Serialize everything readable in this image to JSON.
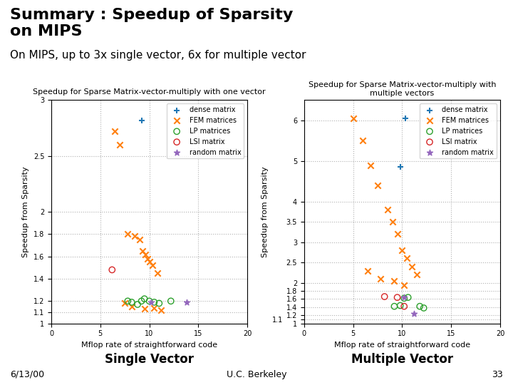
{
  "title": "Summary : Speedup of Sparsity\non MIPS",
  "subtitle": "On MIPS, up to 3x single vector, 6x for multiple vector",
  "annotations": [
    "6/13/00",
    "U.C. Berkeley",
    "33"
  ],
  "chart_data": [
    {
      "type": "scatter",
      "title": "Speedup for Sparse Matrix-vector-multiply with one vector",
      "x_label": "Mflop rate of straightforward code",
      "y_label": "Speedup from Sparsity",
      "xlim": [
        0,
        20
      ],
      "ylim": [
        1,
        3
      ],
      "xticks": [
        0,
        5,
        10,
        15,
        20
      ],
      "yticks": [
        1,
        1.1,
        1.2,
        1.4,
        1.6,
        1.8,
        2,
        2.5,
        3
      ],
      "grid": true,
      "legend": "upper right",
      "annotations": [
        "Single Vector"
      ],
      "series": [
        {
          "name": "dense matrix",
          "marker": "plus",
          "x": [
            9.2
          ],
          "values": [
            2.82
          ]
        },
        {
          "name": "FEM matrices",
          "marker": "x",
          "x": [
            6.5,
            7.0,
            7.8,
            8.5,
            9.0,
            9.3,
            9.6,
            9.8,
            10.0,
            10.3,
            10.8,
            7.5,
            8.2,
            9.5,
            10.5,
            11.2
          ],
          "values": [
            2.72,
            2.6,
            1.8,
            1.78,
            1.75,
            1.65,
            1.62,
            1.58,
            1.55,
            1.52,
            1.45,
            1.18,
            1.15,
            1.13,
            1.14,
            1.12
          ]
        },
        {
          "name": "LP matrices",
          "marker": "circle",
          "x": [
            7.8,
            8.2,
            8.8,
            9.2,
            9.5,
            10.0,
            10.5,
            11.0,
            12.2
          ],
          "values": [
            1.2,
            1.19,
            1.17,
            1.2,
            1.22,
            1.2,
            1.19,
            1.18,
            1.2
          ]
        },
        {
          "name": "LSI matrix",
          "marker": "circle",
          "x": [
            6.2
          ],
          "values": [
            1.48
          ]
        },
        {
          "name": "random matrix",
          "marker": "star",
          "x": [
            10.2,
            13.8
          ],
          "values": [
            1.19,
            1.19
          ]
        }
      ]
    },
    {
      "type": "scatter",
      "title": "Speedup for Sparse Matrix-vector-multiply with multiple vectors",
      "x_label": "Mflop rate of straightforward code",
      "y_label": "Speedup from Sparsity",
      "xlim": [
        0,
        20
      ],
      "ylim": [
        1,
        6.5
      ],
      "xticks": [
        0,
        5,
        10,
        15,
        20
      ],
      "yticks": [
        1,
        1.1,
        1.2,
        1.4,
        1.6,
        1.8,
        2,
        2.5,
        3,
        3.5,
        4,
        5,
        6
      ],
      "grid": true,
      "legend": "upper right",
      "annotations": [
        "Multiple Vector"
      ],
      "series": [
        {
          "name": "dense matrix",
          "marker": "plus",
          "x": [
            9.8,
            10.3
          ],
          "values": [
            4.85,
            6.05
          ]
        },
        {
          "name": "FEM matrices",
          "marker": "x",
          "x": [
            5.0,
            6.0,
            6.8,
            7.5,
            8.5,
            9.0,
            9.5,
            10.0,
            10.5,
            11.0,
            11.5,
            6.5,
            7.8,
            9.2,
            10.2
          ],
          "values": [
            6.05,
            5.5,
            4.9,
            4.4,
            3.8,
            3.5,
            3.2,
            2.8,
            2.6,
            2.4,
            2.2,
            2.3,
            2.1,
            2.05,
            1.95
          ]
        },
        {
          "name": "LP matrices",
          "marker": "circle",
          "x": [
            9.2,
            9.8,
            10.2,
            10.6,
            11.8,
            12.2
          ],
          "values": [
            1.42,
            1.44,
            1.62,
            1.64,
            1.42,
            1.38
          ]
        },
        {
          "name": "LSI matrix",
          "marker": "circle",
          "x": [
            8.2,
            9.5,
            10.2
          ],
          "values": [
            1.66,
            1.64,
            1.42
          ]
        },
        {
          "name": "random matrix",
          "marker": "star",
          "x": [
            10.2,
            11.2
          ],
          "values": [
            1.64,
            1.24
          ]
        }
      ]
    }
  ]
}
